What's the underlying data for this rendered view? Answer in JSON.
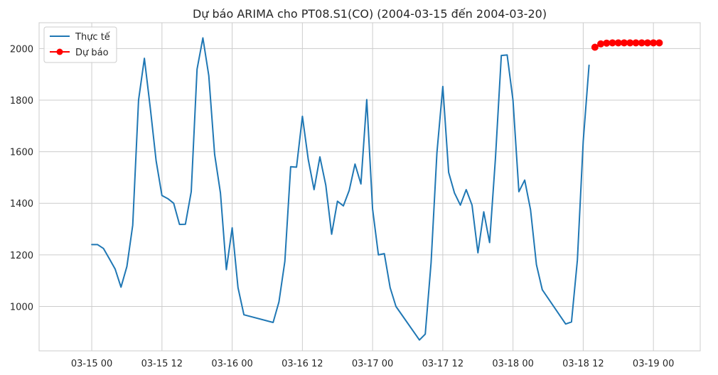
{
  "chart_data": {
    "type": "line",
    "title": "Dự báo ARIMA cho PT08.S1(CO) (2004-03-15 đến 2004-03-20)",
    "xlabel": "",
    "ylabel": "",
    "x_unit": "hours since 03-15 00",
    "xlim": [
      -9,
      104
    ],
    "ylim": [
      828,
      2100
    ],
    "grid": true,
    "legend_position": "top-left",
    "x_ticks": [
      {
        "value": 0,
        "label": "03-15 00"
      },
      {
        "value": 12,
        "label": "03-15 12"
      },
      {
        "value": 24,
        "label": "03-16 00"
      },
      {
        "value": 36,
        "label": "03-16 12"
      },
      {
        "value": 48,
        "label": "03-17 00"
      },
      {
        "value": 60,
        "label": "03-17 12"
      },
      {
        "value": 72,
        "label": "03-18 00"
      },
      {
        "value": 84,
        "label": "03-18 12"
      },
      {
        "value": 96,
        "label": "03-19 00"
      }
    ],
    "y_ticks": [
      1000,
      1200,
      1400,
      1600,
      1800,
      2000
    ],
    "series": [
      {
        "name": "Thực tế",
        "color": "#1f77b4",
        "marker": "none",
        "points": [
          [
            0,
            1240
          ],
          [
            1,
            1240
          ],
          [
            2,
            1225
          ],
          [
            3,
            1185
          ],
          [
            4,
            1145
          ],
          [
            5,
            1075
          ],
          [
            6,
            1155
          ],
          [
            7,
            1315
          ],
          [
            8,
            1800
          ],
          [
            9,
            1962
          ],
          [
            10,
            1770
          ],
          [
            11,
            1565
          ],
          [
            12,
            1430
          ],
          [
            13,
            1418
          ],
          [
            14,
            1400
          ],
          [
            15,
            1318
          ],
          [
            16,
            1319
          ],
          [
            17,
            1445
          ],
          [
            18,
            1920
          ],
          [
            19,
            2041
          ],
          [
            20,
            1895
          ],
          [
            21,
            1590
          ],
          [
            22,
            1440
          ],
          [
            23,
            1143
          ],
          [
            24,
            1305
          ],
          [
            25,
            1073
          ],
          [
            26,
            968
          ],
          [
            31,
            938
          ],
          [
            32,
            1018
          ],
          [
            33,
            1175
          ],
          [
            34,
            1542
          ],
          [
            35,
            1540
          ],
          [
            36,
            1737
          ],
          [
            37,
            1570
          ],
          [
            38,
            1453
          ],
          [
            39,
            1580
          ],
          [
            40,
            1470
          ],
          [
            41,
            1280
          ],
          [
            42,
            1408
          ],
          [
            43,
            1390
          ],
          [
            44,
            1450
          ],
          [
            45,
            1552
          ],
          [
            46,
            1475
          ],
          [
            47,
            1802
          ],
          [
            48,
            1378
          ],
          [
            49,
            1200
          ],
          [
            50,
            1205
          ],
          [
            51,
            1073
          ],
          [
            52,
            1000
          ],
          [
            56,
            870
          ],
          [
            57,
            893
          ],
          [
            58,
            1170
          ],
          [
            59,
            1595
          ],
          [
            60,
            1853
          ],
          [
            61,
            1520
          ],
          [
            62,
            1440
          ],
          [
            63,
            1393
          ],
          [
            64,
            1453
          ],
          [
            65,
            1393
          ],
          [
            66,
            1208
          ],
          [
            67,
            1367
          ],
          [
            68,
            1248
          ],
          [
            69,
            1573
          ],
          [
            70,
            1973
          ],
          [
            71,
            1975
          ],
          [
            72,
            1800
          ],
          [
            73,
            1445
          ],
          [
            74,
            1490
          ],
          [
            75,
            1375
          ],
          [
            76,
            1162
          ],
          [
            77,
            1065
          ],
          [
            81,
            932
          ],
          [
            82,
            940
          ],
          [
            83,
            1180
          ],
          [
            84,
            1640
          ],
          [
            85,
            1935
          ]
        ]
      },
      {
        "name": "Dự báo",
        "color": "#ff0000",
        "marker": "circle",
        "points": [
          [
            86,
            2005
          ],
          [
            87,
            2018
          ],
          [
            88,
            2021
          ],
          [
            89,
            2022
          ],
          [
            90,
            2022
          ],
          [
            91,
            2022
          ],
          [
            92,
            2022
          ],
          [
            93,
            2022
          ],
          [
            94,
            2022
          ],
          [
            95,
            2022
          ],
          [
            96,
            2022
          ],
          [
            97,
            2022
          ]
        ]
      }
    ]
  }
}
